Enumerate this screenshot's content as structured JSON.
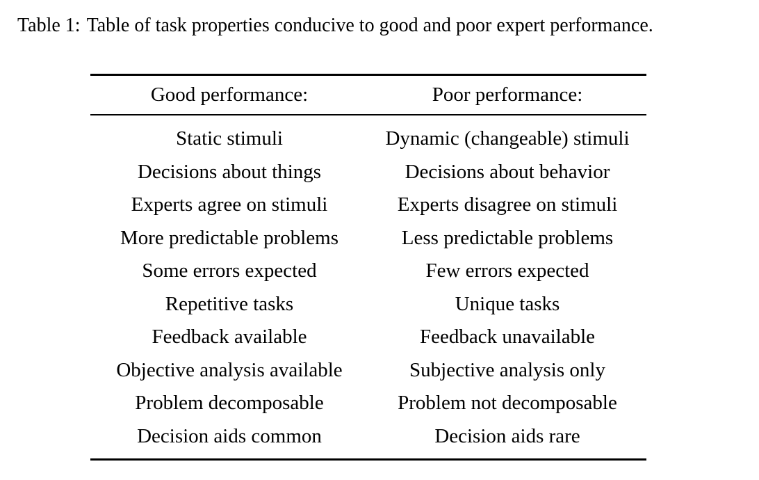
{
  "caption": {
    "label": "Table 1:",
    "text": "Table of task properties conducive to good and poor expert performance."
  },
  "table": {
    "columns": [
      "Good performance:",
      "Poor performance:"
    ],
    "rows": [
      [
        "Static stimuli",
        "Dynamic (changeable) stimuli"
      ],
      [
        "Decisions about things",
        "Decisions about behavior"
      ],
      [
        "Experts agree on stimuli",
        "Experts disagree on stimuli"
      ],
      [
        "More predictable problems",
        "Less predictable problems"
      ],
      [
        "Some errors expected",
        "Few errors expected"
      ],
      [
        "Repetitive tasks",
        "Unique tasks"
      ],
      [
        "Feedback available",
        "Feedback unavailable"
      ],
      [
        "Objective analysis available",
        "Subjective analysis only"
      ],
      [
        "Problem decomposable",
        "Problem not decomposable"
      ],
      [
        "Decision aids common",
        "Decision aids rare"
      ]
    ]
  },
  "colors": {
    "background": "#ffffff",
    "text": "#000000",
    "rule": "#000000"
  }
}
